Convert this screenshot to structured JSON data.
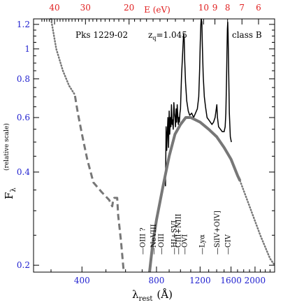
{
  "chart_data": {
    "type": "line",
    "object_label": "Pks 1229-02",
    "redshift_label": "z",
    "redshift_sub": "q",
    "redshift_value": "=1.045",
    "class_label": "class B",
    "x_scale": "log",
    "y_scale": "log",
    "xlim": [
      255,
      2400
    ],
    "ylim": [
      0.19,
      1.25
    ],
    "x_ticks": [
      400,
      800,
      1200,
      1600,
      2000
    ],
    "y_ticks": [
      0.2,
      0.4,
      0.6,
      0.8,
      1,
      1.2
    ],
    "top_axis": {
      "label": "E (eV)",
      "ticks_eV": [
        40,
        30,
        20,
        10,
        9,
        8,
        7,
        6
      ],
      "hc_eV_angstrom": 12398.4
    },
    "xlabel_main": "λ",
    "xlabel_sub": "rest",
    "xlabel_unit": "(Å)",
    "ylabel_main": "F",
    "ylabel_sub": "λ",
    "ylabel_note": "(relative scale)",
    "colors": {
      "axis": "#000000",
      "tick_labels_bottom_left": "#1f1fcf",
      "tick_labels_top": "#e02020",
      "spectrum": "#000000",
      "model": "#777777"
    },
    "line_labels": [
      {
        "text": "OIII ?",
        "x": 700
      },
      {
        "text": "NeVIII",
        "x": 774
      },
      {
        "text": "OIII",
        "x": 833
      },
      {
        "text": "HI+SVI",
        "x": 937
      },
      {
        "text": "CIII+NIII",
        "x": 977
      },
      {
        "text": "OVI",
        "x": 1034
      },
      {
        "text": "Lyα",
        "x": 1216
      },
      {
        "text": "SiIV+OIV]",
        "x": 1400
      },
      {
        "text": "CIV",
        "x": 1549
      }
    ],
    "series": [
      {
        "style": "dotted",
        "color": "#777777",
        "points": [
          [
            300,
            1.25
          ],
          [
            315,
            1.0
          ],
          [
            335,
            0.85
          ],
          [
            355,
            0.76
          ],
          [
            375,
            0.71
          ]
        ]
      },
      {
        "style": "dashed",
        "color": "#777777",
        "points": [
          [
            375,
            0.705
          ],
          [
            385,
            0.62
          ],
          [
            400,
            0.53
          ],
          [
            420,
            0.44
          ],
          [
            445,
            0.37
          ],
          [
            480,
            0.345
          ],
          [
            515,
            0.325
          ],
          [
            530,
            0.31
          ],
          [
            535,
            0.325
          ],
          [
            540,
            0.33
          ],
          [
            555,
            0.33
          ],
          [
            560,
            0.29
          ],
          [
            575,
            0.24
          ],
          [
            590,
            0.19
          ]
        ]
      },
      {
        "style": "solid",
        "color": "#000000",
        "points": [
          [
            870,
            0.36
          ],
          [
            872,
            0.43
          ],
          [
            875,
            0.56
          ],
          [
            880,
            0.47
          ],
          [
            885,
            0.54
          ],
          [
            890,
            0.6
          ],
          [
            895,
            0.48
          ],
          [
            900,
            0.63
          ],
          [
            905,
            0.53
          ],
          [
            910,
            0.6
          ],
          [
            915,
            0.56
          ],
          [
            920,
            0.66
          ],
          [
            925,
            0.57
          ],
          [
            930,
            0.59
          ],
          [
            935,
            0.55
          ],
          [
            940,
            0.67
          ],
          [
            945,
            0.62
          ],
          [
            950,
            0.6
          ],
          [
            955,
            0.56
          ],
          [
            960,
            0.64
          ],
          [
            965,
            0.58
          ],
          [
            970,
            0.66
          ],
          [
            975,
            0.61
          ],
          [
            980,
            0.57
          ],
          [
            985,
            0.6
          ],
          [
            990,
            0.58
          ],
          [
            995,
            0.62
          ],
          [
            1000,
            0.64
          ],
          [
            1005,
            0.72
          ],
          [
            1010,
            0.82
          ],
          [
            1018,
            0.93
          ],
          [
            1025,
            1.05
          ],
          [
            1030,
            1.12
          ],
          [
            1035,
            1.08
          ],
          [
            1040,
            0.92
          ],
          [
            1048,
            0.78
          ],
          [
            1060,
            0.68
          ],
          [
            1075,
            0.63
          ],
          [
            1090,
            0.61
          ],
          [
            1110,
            0.62
          ],
          [
            1130,
            0.6
          ],
          [
            1150,
            0.62
          ],
          [
            1170,
            0.64
          ],
          [
            1185,
            0.7
          ],
          [
            1195,
            0.86
          ],
          [
            1202,
            1.05
          ],
          [
            1208,
            1.2
          ],
          [
            1213,
            1.3
          ],
          [
            1220,
            1.22
          ],
          [
            1226,
            1.02
          ],
          [
            1235,
            0.82
          ],
          [
            1248,
            0.7
          ],
          [
            1262,
            0.65
          ],
          [
            1280,
            0.6
          ],
          [
            1300,
            0.59
          ],
          [
            1320,
            0.58
          ],
          [
            1340,
            0.57
          ],
          [
            1360,
            0.58
          ],
          [
            1380,
            0.6
          ],
          [
            1395,
            0.64
          ],
          [
            1402,
            0.66
          ],
          [
            1410,
            0.6
          ],
          [
            1425,
            0.56
          ],
          [
            1450,
            0.55
          ],
          [
            1475,
            0.54
          ],
          [
            1500,
            0.54
          ],
          [
            1515,
            0.56
          ],
          [
            1525,
            0.62
          ],
          [
            1535,
            0.8
          ],
          [
            1541,
            0.98
          ],
          [
            1547,
            1.16
          ],
          [
            1552,
            1.22
          ],
          [
            1557,
            1.12
          ],
          [
            1565,
            0.86
          ],
          [
            1575,
            0.62
          ],
          [
            1590,
            0.52
          ],
          [
            1605,
            0.5
          ]
        ]
      },
      {
        "style": "solid-thick",
        "color": "#777777",
        "points": [
          [
            750,
            0.19
          ],
          [
            770,
            0.23
          ],
          [
            800,
            0.28
          ],
          [
            850,
            0.36
          ],
          [
            900,
            0.45
          ],
          [
            950,
            0.53
          ],
          [
            1000,
            0.57
          ],
          [
            1050,
            0.6
          ],
          [
            1100,
            0.6
          ],
          [
            1200,
            0.58
          ],
          [
            1300,
            0.55
          ],
          [
            1400,
            0.52
          ],
          [
            1500,
            0.48
          ],
          [
            1600,
            0.44
          ],
          [
            1700,
            0.39
          ],
          [
            1740,
            0.375
          ]
        ]
      },
      {
        "style": "dotted",
        "color": "#777777",
        "points": [
          [
            1740,
            0.375
          ],
          [
            1900,
            0.31
          ],
          [
            2100,
            0.25
          ],
          [
            2300,
            0.21
          ],
          [
            2400,
            0.2
          ]
        ]
      }
    ]
  }
}
